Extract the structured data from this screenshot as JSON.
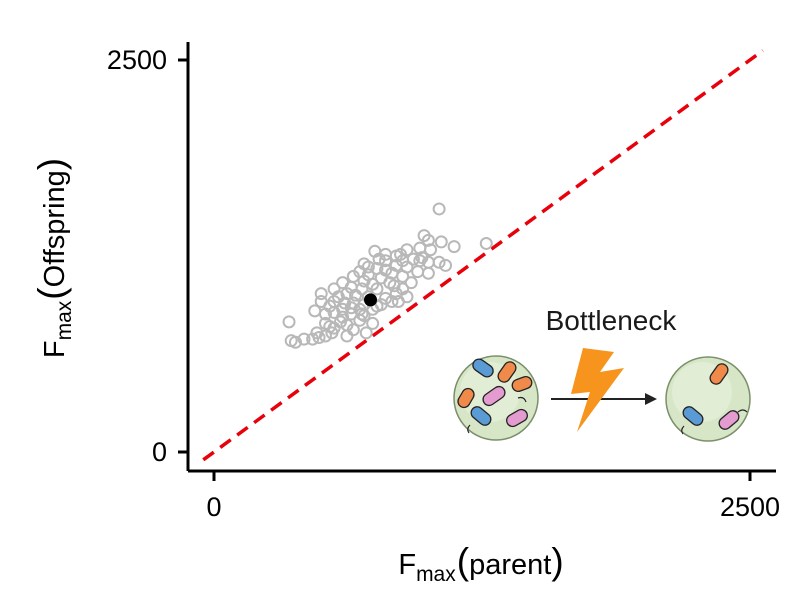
{
  "chart_data": {
    "type": "scatter",
    "xlim": [
      -50,
      2500
    ],
    "ylim": [
      -50,
      2500
    ],
    "x_ticks": [
      {
        "value": 0,
        "label": "0"
      },
      {
        "value": 2500,
        "label": "2500"
      }
    ],
    "y_ticks": [
      {
        "value": 0,
        "label": "0"
      },
      {
        "value": 2500,
        "label": "2500"
      }
    ],
    "xlabel": {
      "main": "F",
      "sub": "max",
      "inner": "parent"
    },
    "ylabel": {
      "main": "F",
      "sub": "max",
      "inner": "Offspring"
    },
    "grid": false,
    "reference_line": {
      "slope": 1,
      "intercept": 0,
      "color": "#e8000b",
      "style": "dashed"
    },
    "series": [
      {
        "marker": "open-circle",
        "color": "#b8b8b8",
        "points": [
          [
            1050,
            1550
          ],
          [
            980,
            1380
          ],
          [
            1000,
            1350
          ],
          [
            1060,
            1340
          ],
          [
            1120,
            1310
          ],
          [
            1270,
            1330
          ],
          [
            900,
            1290
          ],
          [
            960,
            1300
          ],
          [
            1010,
            1290
          ],
          [
            870,
            1260
          ],
          [
            970,
            1240
          ],
          [
            930,
            1230
          ],
          [
            850,
            1250
          ],
          [
            800,
            1220
          ],
          [
            750,
            1280
          ],
          [
            800,
            1260
          ],
          [
            770,
            1230
          ],
          [
            880,
            1220
          ],
          [
            960,
            1220
          ],
          [
            1000,
            1210
          ],
          [
            1050,
            1210
          ],
          [
            1080,
            1190
          ],
          [
            900,
            1180
          ],
          [
            850,
            1190
          ],
          [
            950,
            1150
          ],
          [
            1000,
            1140
          ],
          [
            700,
            1200
          ],
          [
            720,
            1180
          ],
          [
            760,
            1170
          ],
          [
            800,
            1160
          ],
          [
            830,
            1140
          ],
          [
            680,
            1150
          ],
          [
            720,
            1130
          ],
          [
            650,
            1120
          ],
          [
            780,
            1110
          ],
          [
            880,
            1120
          ],
          [
            920,
            1080
          ],
          [
            820,
            1080
          ],
          [
            740,
            1070
          ],
          [
            700,
            1090
          ],
          [
            600,
            1080
          ],
          [
            640,
            1050
          ],
          [
            560,
            1040
          ],
          [
            690,
            1040
          ],
          [
            760,
            1040
          ],
          [
            840,
            1060
          ],
          [
            880,
            1040
          ],
          [
            620,
            1010
          ],
          [
            500,
            1010
          ],
          [
            580,
            990
          ],
          [
            660,
            1000
          ],
          [
            720,
            990
          ],
          [
            800,
            980
          ],
          [
            560,
            960
          ],
          [
            610,
            950
          ],
          [
            650,
            950
          ],
          [
            700,
            940
          ],
          [
            760,
            930
          ],
          [
            500,
            960
          ],
          [
            540,
            930
          ],
          [
            600,
            910
          ],
          [
            640,
            920
          ],
          [
            680,
            910
          ],
          [
            740,
            910
          ],
          [
            780,
            940
          ],
          [
            830,
            960
          ],
          [
            860,
            960
          ],
          [
            900,
            990
          ],
          [
            850,
            1010
          ],
          [
            700,
            870
          ],
          [
            640,
            880
          ],
          [
            560,
            890
          ],
          [
            520,
            880
          ],
          [
            470,
            900
          ],
          [
            350,
            830
          ],
          [
            600,
            860
          ],
          [
            680,
            840
          ],
          [
            740,
            820
          ],
          [
            550,
            760
          ],
          [
            520,
            740
          ],
          [
            480,
            760
          ],
          [
            420,
            720
          ],
          [
            380,
            700
          ],
          [
            490,
            730
          ],
          [
            620,
            740
          ],
          [
            560,
            790
          ],
          [
            650,
            780
          ],
          [
            710,
            760
          ],
          [
            360,
            710
          ],
          [
            460,
            720
          ],
          [
            690,
            880
          ],
          [
            590,
            830
          ],
          [
            520,
            820
          ],
          [
            540,
            800
          ],
          [
            620,
            810
          ]
        ]
      },
      {
        "name": "",
        "marker": "filled-circle",
        "color": "#000000",
        "points": [
          [
            730,
            970
          ]
        ]
      }
    ]
  },
  "inset": {
    "label": "Bottleneck",
    "bolt_color": "#f7941d",
    "dish_color": "#d4e5c3",
    "cell_colors": {
      "orange": "#f08a4b",
      "blue": "#5b9bd5",
      "pink": "#e49bd0"
    }
  }
}
